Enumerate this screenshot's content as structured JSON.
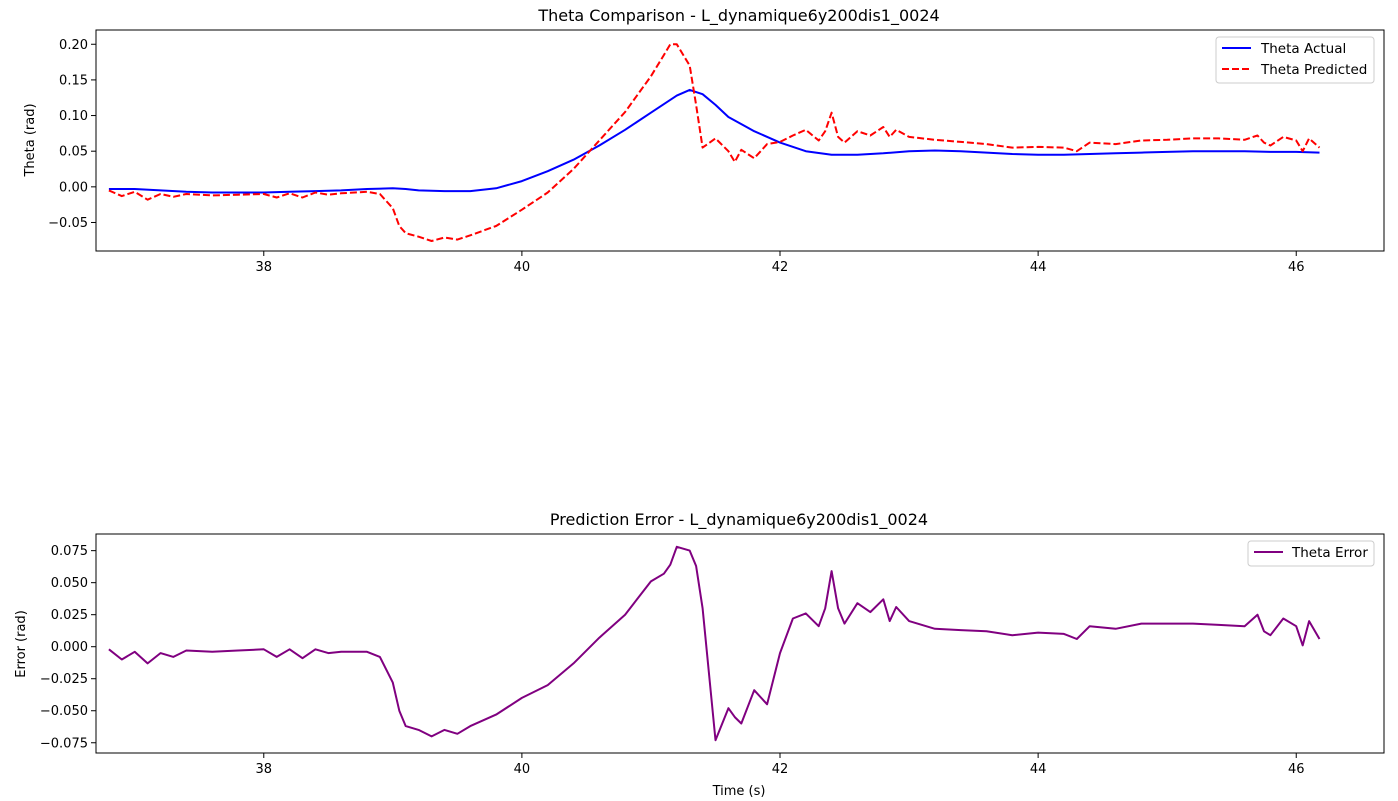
{
  "chart_data": [
    {
      "type": "line",
      "title": "Theta Comparison - L_dynamique6y200dis1_0024",
      "xlabel": "",
      "ylabel": "Theta (rad)",
      "xlim": [
        36.7,
        46.68
      ],
      "ylim": [
        -0.09,
        0.22
      ],
      "xticks": [
        38,
        40,
        42,
        44,
        46
      ],
      "xtick_labels": [
        "38",
        "40",
        "42",
        "44",
        "46"
      ],
      "yticks": [
        -0.05,
        0.0,
        0.05,
        0.1,
        0.15,
        0.2
      ],
      "ytick_labels": [
        "−0.05",
        "0.00",
        "0.05",
        "0.10",
        "0.15",
        "0.20"
      ],
      "grid": false,
      "legend": "top-right",
      "series": [
        {
          "name": "Theta Actual",
          "color": "#0000ff",
          "style": "solid",
          "x": [
            36.8,
            37.0,
            37.2,
            37.4,
            37.6,
            37.8,
            38.0,
            38.2,
            38.4,
            38.6,
            38.8,
            39.0,
            39.1,
            39.2,
            39.4,
            39.6,
            39.8,
            40.0,
            40.2,
            40.4,
            40.6,
            40.8,
            41.0,
            41.2,
            41.3,
            41.4,
            41.5,
            41.6,
            41.8,
            42.0,
            42.2,
            42.4,
            42.6,
            42.8,
            43.0,
            43.2,
            43.4,
            43.6,
            43.8,
            44.0,
            44.2,
            44.4,
            44.6,
            44.8,
            45.0,
            45.2,
            45.4,
            45.6,
            45.8,
            46.0,
            46.18
          ],
          "y": [
            -0.003,
            -0.003,
            -0.005,
            -0.007,
            -0.008,
            -0.008,
            -0.008,
            -0.007,
            -0.006,
            -0.005,
            -0.003,
            -0.002,
            -0.003,
            -0.005,
            -0.006,
            -0.006,
            -0.002,
            0.008,
            0.022,
            0.038,
            0.058,
            0.08,
            0.104,
            0.128,
            0.136,
            0.13,
            0.115,
            0.098,
            0.078,
            0.062,
            0.05,
            0.045,
            0.045,
            0.047,
            0.05,
            0.051,
            0.05,
            0.048,
            0.046,
            0.045,
            0.045,
            0.046,
            0.047,
            0.048,
            0.049,
            0.05,
            0.05,
            0.05,
            0.049,
            0.049,
            0.048
          ]
        },
        {
          "name": "Theta Predicted",
          "color": "#ff0000",
          "style": "dashed",
          "x": [
            36.8,
            36.9,
            37.0,
            37.1,
            37.2,
            37.3,
            37.4,
            37.6,
            37.8,
            38.0,
            38.1,
            38.2,
            38.3,
            38.4,
            38.5,
            38.6,
            38.8,
            38.9,
            39.0,
            39.05,
            39.1,
            39.2,
            39.3,
            39.4,
            39.5,
            39.6,
            39.8,
            40.0,
            40.2,
            40.4,
            40.6,
            40.8,
            41.0,
            41.1,
            41.15,
            41.2,
            41.3,
            41.35,
            41.4,
            41.5,
            41.6,
            41.65,
            41.7,
            41.8,
            41.9,
            42.0,
            42.1,
            42.2,
            42.3,
            42.35,
            42.4,
            42.45,
            42.5,
            42.6,
            42.7,
            42.8,
            42.85,
            42.9,
            43.0,
            43.2,
            43.4,
            43.6,
            43.8,
            44.0,
            44.2,
            44.3,
            44.4,
            44.6,
            44.8,
            45.0,
            45.2,
            45.4,
            45.6,
            45.7,
            45.75,
            45.8,
            45.9,
            46.0,
            46.05,
            46.1,
            46.18
          ],
          "y": [
            -0.005,
            -0.013,
            -0.007,
            -0.018,
            -0.01,
            -0.014,
            -0.01,
            -0.012,
            -0.011,
            -0.01,
            -0.015,
            -0.009,
            -0.015,
            -0.008,
            -0.011,
            -0.009,
            -0.007,
            -0.01,
            -0.03,
            -0.055,
            -0.065,
            -0.07,
            -0.076,
            -0.071,
            -0.074,
            -0.068,
            -0.055,
            -0.032,
            -0.008,
            0.025,
            0.065,
            0.105,
            0.155,
            0.185,
            0.2,
            0.2,
            0.17,
            0.115,
            0.055,
            0.068,
            0.05,
            0.035,
            0.052,
            0.04,
            0.06,
            0.063,
            0.072,
            0.08,
            0.065,
            0.078,
            0.104,
            0.07,
            0.062,
            0.078,
            0.072,
            0.084,
            0.07,
            0.08,
            0.07,
            0.066,
            0.063,
            0.06,
            0.055,
            0.056,
            0.055,
            0.05,
            0.062,
            0.06,
            0.065,
            0.066,
            0.068,
            0.068,
            0.066,
            0.072,
            0.062,
            0.058,
            0.07,
            0.065,
            0.05,
            0.068,
            0.055
          ]
        }
      ]
    },
    {
      "type": "line",
      "title": "Prediction Error - L_dynamique6y200dis1_0024",
      "xlabel": "Time (s)",
      "ylabel": "Error (rad)",
      "xlim": [
        36.7,
        46.68
      ],
      "ylim": [
        -0.083,
        0.088
      ],
      "xticks": [
        38,
        40,
        42,
        44,
        46
      ],
      "xtick_labels": [
        "38",
        "40",
        "42",
        "44",
        "46"
      ],
      "yticks": [
        -0.075,
        -0.05,
        -0.025,
        0.0,
        0.025,
        0.05,
        0.075
      ],
      "ytick_labels": [
        "−0.075",
        "−0.050",
        "−0.025",
        "0.000",
        "0.025",
        "0.050",
        "0.075"
      ],
      "grid": false,
      "legend": "top-right",
      "series": [
        {
          "name": "Theta Error",
          "color": "#800080",
          "style": "solid",
          "x": [
            36.8,
            36.9,
            37.0,
            37.1,
            37.2,
            37.3,
            37.4,
            37.6,
            37.8,
            38.0,
            38.1,
            38.2,
            38.3,
            38.4,
            38.5,
            38.6,
            38.8,
            38.9,
            39.0,
            39.05,
            39.1,
            39.2,
            39.3,
            39.4,
            39.5,
            39.6,
            39.8,
            40.0,
            40.2,
            40.4,
            40.6,
            40.8,
            41.0,
            41.1,
            41.15,
            41.2,
            41.3,
            41.35,
            41.4,
            41.5,
            41.6,
            41.65,
            41.7,
            41.8,
            41.9,
            42.0,
            42.1,
            42.2,
            42.3,
            42.35,
            42.4,
            42.45,
            42.5,
            42.6,
            42.7,
            42.8,
            42.85,
            42.9,
            43.0,
            43.2,
            43.4,
            43.6,
            43.8,
            44.0,
            44.2,
            44.3,
            44.4,
            44.6,
            44.8,
            45.0,
            45.2,
            45.4,
            45.6,
            45.7,
            45.75,
            45.8,
            45.9,
            46.0,
            46.05,
            46.1,
            46.18
          ],
          "y": [
            -0.002,
            -0.01,
            -0.004,
            -0.013,
            -0.005,
            -0.008,
            -0.003,
            -0.004,
            -0.003,
            -0.002,
            -0.008,
            -0.002,
            -0.009,
            -0.002,
            -0.005,
            -0.004,
            -0.004,
            -0.008,
            -0.028,
            -0.05,
            -0.062,
            -0.065,
            -0.07,
            -0.065,
            -0.068,
            -0.062,
            -0.053,
            -0.04,
            -0.03,
            -0.013,
            0.007,
            0.025,
            0.051,
            0.057,
            0.064,
            0.078,
            0.075,
            0.063,
            0.03,
            -0.073,
            -0.048,
            -0.055,
            -0.06,
            -0.034,
            -0.045,
            -0.005,
            0.022,
            0.026,
            0.016,
            0.03,
            0.059,
            0.03,
            0.018,
            0.034,
            0.027,
            0.037,
            0.02,
            0.031,
            0.02,
            0.014,
            0.013,
            0.012,
            0.009,
            0.011,
            0.01,
            0.006,
            0.016,
            0.014,
            0.018,
            0.018,
            0.018,
            0.017,
            0.016,
            0.025,
            0.012,
            0.009,
            0.022,
            0.016,
            0.001,
            0.02,
            0.006
          ]
        }
      ]
    }
  ]
}
